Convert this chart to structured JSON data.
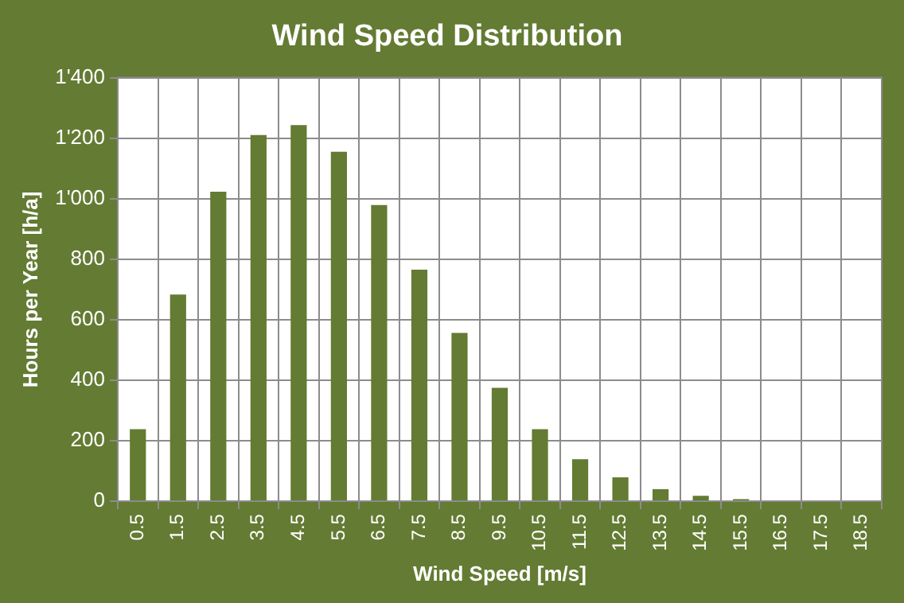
{
  "chart_data": {
    "type": "bar",
    "title": "Wind Speed Distribution",
    "xlabel": "Wind Speed [m/s]",
    "ylabel": "Hours per Year [h/a]",
    "categories": [
      "0.5",
      "1.5",
      "2.5",
      "3.5",
      "4.5",
      "5.5",
      "6.5",
      "7.5",
      "8.5",
      "9.5",
      "10.5",
      "11.5",
      "12.5",
      "13.5",
      "14.5",
      "15.5",
      "16.5",
      "17.5",
      "18.5"
    ],
    "values": [
      238,
      683,
      1023,
      1210,
      1243,
      1155,
      979,
      765,
      556,
      375,
      238,
      139,
      79,
      40,
      18,
      7,
      0,
      0,
      0
    ],
    "color": "#637b32",
    "ylim": [
      0,
      1400
    ],
    "yticks": [
      0,
      200,
      400,
      600,
      800,
      {
        "value": 1000,
        "label": "1'000"
      },
      {
        "value": 1200,
        "label": "1'200"
      },
      {
        "value": 1400,
        "label": "1'400"
      }
    ],
    "grid": true
  }
}
